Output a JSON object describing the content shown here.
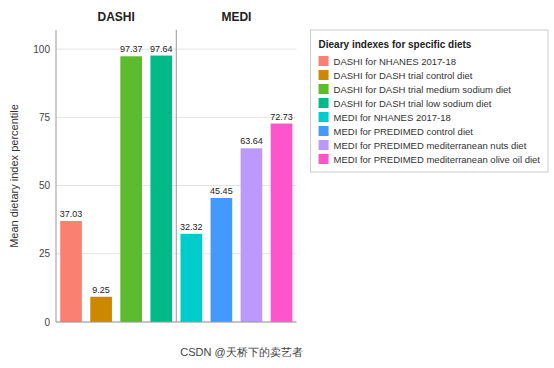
{
  "chart_data": [
    {
      "type": "bar",
      "title": "DASHI",
      "y_label": "Mean dietary index percentile",
      "categories": [
        "DASHI for NHANES 2017-18",
        "DASHI for DASH trial control diet",
        "DASHI for DASH trial medium sodium diet",
        "DASHI for DASH trial low sodium diet"
      ],
      "values": [
        37.03,
        9.25,
        97.37,
        97.64
      ],
      "colors": [
        "#FA8072",
        "#CC8800",
        "#5DBB2F",
        "#00BB88"
      ],
      "ylim": [
        0,
        107
      ],
      "yticks": [
        0,
        25,
        50,
        75,
        100
      ],
      "grid": true,
      "data_labels": true,
      "tick_labels": "y",
      "legend": "right",
      "legend_title": "Dieary indexes for specific diets"
    },
    {
      "type": "bar",
      "title": "MEDI",
      "categories": [
        "MEDI for NHANES 2017-18",
        "MEDI for PREDIMED control diet",
        "MEDI for PREDIMED mediterranean nuts diet",
        "MEDI for PREDIMED mediterranean olive oil diet"
      ],
      "values": [
        32.32,
        45.45,
        63.64,
        72.73
      ],
      "colors": [
        "#00CCCC",
        "#4499FF",
        "#BB99FF",
        "#FF55CC"
      ],
      "ylim": [
        0,
        107
      ],
      "yticks": [
        0,
        25,
        50,
        75,
        100
      ],
      "grid": true,
      "data_labels": true,
      "tick_labels": false,
      "legend": "right",
      "annotations": [
        "CSDN @天桥下的卖艺者"
      ]
    }
  ]
}
